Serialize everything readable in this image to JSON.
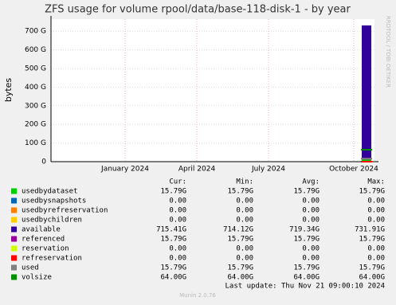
{
  "chart_data": {
    "type": "stacked-bar",
    "title": "ZFS usage for volume rpool/data/base-118-disk-1 - by year",
    "y_label": "bytes",
    "ylim": [
      0,
      765
    ],
    "yticks": [
      0,
      {
        "value": 100,
        "label": "100 G"
      },
      {
        "value": 200,
        "label": "200 G"
      },
      {
        "value": 300,
        "label": "300 G"
      },
      {
        "value": 400,
        "label": "400 G"
      },
      {
        "value": 500,
        "label": "500 G"
      },
      {
        "value": 600,
        "label": "600 G"
      },
      {
        "value": 700,
        "label": "700 G"
      }
    ],
    "xticks": [
      "January 2024",
      "April 2024",
      "July 2024",
      "October 2024"
    ],
    "grid": true,
    "columns": [
      "Cur:",
      "Min:",
      "Avg:",
      "Max:"
    ],
    "series": [
      {
        "name": "usedbydataset",
        "color": "#00cc00",
        "stack": true,
        "values": [
          15.79
        ],
        "value_labels": [
          "15.79G"
        ],
        "min": "15.79G",
        "avg": "15.79G",
        "max": "15.79G"
      },
      {
        "name": "usedbysnapshots",
        "color": "#0066b3",
        "stack": true,
        "values": [
          0
        ],
        "value_labels": [
          "0.00"
        ],
        "min": "0.00",
        "avg": "0.00",
        "max": "0.00"
      },
      {
        "name": "usedbyrefreservation",
        "color": "#ff8000",
        "stack": true,
        "values": [
          0
        ],
        "value_labels": [
          "0.00"
        ],
        "min": "0.00",
        "avg": "0.00",
        "max": "0.00"
      },
      {
        "name": "usedbychildren",
        "color": "#ffcc00",
        "stack": true,
        "values": [
          0
        ],
        "value_labels": [
          "0.00"
        ],
        "min": "0.00",
        "avg": "0.00",
        "max": "0.00"
      },
      {
        "name": "available",
        "color": "#330099",
        "stack": true,
        "values": [
          715.41
        ],
        "value_labels": [
          "715.41G"
        ],
        "min": "714.12G",
        "avg": "719.34G",
        "max": "731.91G"
      },
      {
        "name": "referenced",
        "color": "#990099",
        "stack": false,
        "values": [
          15.79
        ],
        "value_labels": [
          "15.79G"
        ],
        "min": "15.79G",
        "avg": "15.79G",
        "max": "15.79G"
      },
      {
        "name": "reservation",
        "color": "#ccff00",
        "stack": false,
        "values": [
          0
        ],
        "value_labels": [
          "0.00"
        ],
        "min": "0.00",
        "avg": "0.00",
        "max": "0.00"
      },
      {
        "name": "refreservation",
        "color": "#ff0000",
        "stack": false,
        "values": [
          0
        ],
        "value_labels": [
          "0.00"
        ],
        "min": "0.00",
        "avg": "0.00",
        "max": "0.00"
      },
      {
        "name": "used",
        "color": "#808080",
        "stack": false,
        "values": [
          15.79
        ],
        "value_labels": [
          "15.79G"
        ],
        "min": "15.79G",
        "avg": "15.79G",
        "max": "15.79G"
      },
      {
        "name": "volsize",
        "color": "#008f00",
        "stack": false,
        "values": [
          64
        ],
        "value_labels": [
          "64.00G"
        ],
        "min": "64.00G",
        "avg": "64.00G",
        "max": "64.00G"
      }
    ],
    "last_update": "Last update: Thu Nov 21 09:00:10 2024",
    "footer": "Munin 2.0.76",
    "side_text": "RRDTOOL / TOBI OETIKER"
  }
}
